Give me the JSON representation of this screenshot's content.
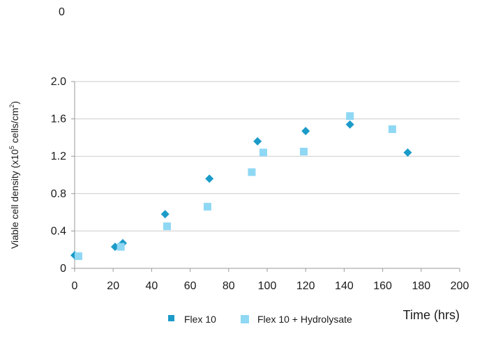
{
  "corner_label": "0",
  "colors": {
    "flex10": "#1b9bc8",
    "flex10_hydrolysate": "#8fd8f4",
    "grid": "#cccccc",
    "axis": "#999999"
  },
  "chart_data": {
    "type": "scatter",
    "title": "",
    "xlabel": "Time (hrs)",
    "ylabel_main": "Viable cell density (x10",
    "ylabel_sup1": "5",
    "ylabel_mid": " cells/cm",
    "ylabel_sup2": "2",
    "ylabel_end": ")",
    "xlim": [
      0,
      200
    ],
    "ylim": [
      0,
      2.0
    ],
    "x_ticks": [
      0,
      20,
      40,
      60,
      80,
      100,
      120,
      140,
      160,
      180,
      200
    ],
    "y_ticks": [
      0,
      0.4,
      0.8,
      1.2,
      1.6,
      2.0
    ],
    "y_tick_labels": [
      "0",
      "0.4",
      "0.8",
      "1.2",
      "1.6",
      "2.0"
    ],
    "grid": "horizontal",
    "legend_position": "bottom-center",
    "series": [
      {
        "name": "Flex 10",
        "marker": "diamond",
        "x": [
          0,
          21,
          25,
          47,
          70,
          95,
          120,
          143,
          173
        ],
        "y": [
          0.14,
          0.23,
          0.27,
          0.58,
          0.96,
          1.36,
          1.47,
          1.54,
          1.24
        ]
      },
      {
        "name": "Flex 10 + Hydrolysate",
        "marker": "square",
        "x": [
          2,
          24,
          48,
          69,
          92,
          98,
          119,
          143,
          165
        ],
        "y": [
          0.13,
          0.23,
          0.45,
          0.66,
          1.03,
          1.24,
          1.25,
          1.63,
          1.49
        ]
      }
    ]
  }
}
